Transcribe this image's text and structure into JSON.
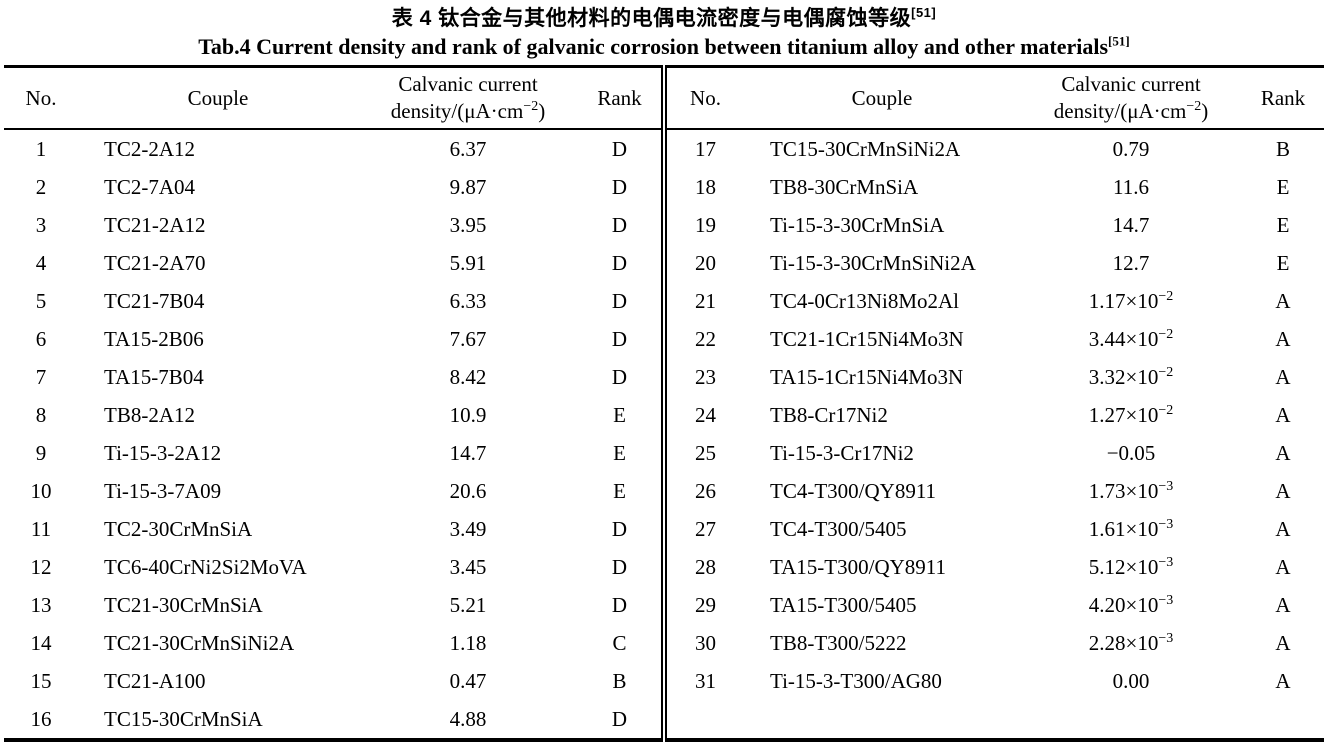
{
  "page": {
    "background_color": "#ffffff",
    "ink_color": "#000000"
  },
  "caption": {
    "zh": "表 4  钛合金与其他材料的电偶电流密度与电偶腐蚀等级",
    "zh_ref": "[51]",
    "en": "Tab.4 Current density and rank of galvanic corrosion between titanium alloy and other materials",
    "en_ref": "[51]"
  },
  "table": {
    "headers": {
      "no": "No.",
      "couple": "Couple",
      "density_line1": "Calvanic current",
      "density_line2_pre": "density/(μA·cm",
      "density_line2_sup": "−2",
      "density_line2_post": ")",
      "rank": "Rank"
    },
    "left_rows": [
      {
        "no": "1",
        "couple": "TC2-2A12",
        "density": "6.37",
        "density_sup": "",
        "rank": "D"
      },
      {
        "no": "2",
        "couple": "TC2-7A04",
        "density": "9.87",
        "density_sup": "",
        "rank": "D"
      },
      {
        "no": "3",
        "couple": "TC21-2A12",
        "density": "3.95",
        "density_sup": "",
        "rank": "D"
      },
      {
        "no": "4",
        "couple": "TC21-2A70",
        "density": "5.91",
        "density_sup": "",
        "rank": "D"
      },
      {
        "no": "5",
        "couple": "TC21-7B04",
        "density": "6.33",
        "density_sup": "",
        "rank": "D"
      },
      {
        "no": "6",
        "couple": "TA15-2B06",
        "density": "7.67",
        "density_sup": "",
        "rank": "D"
      },
      {
        "no": "7",
        "couple": "TA15-7B04",
        "density": "8.42",
        "density_sup": "",
        "rank": "D"
      },
      {
        "no": "8",
        "couple": "TB8-2A12",
        "density": "10.9",
        "density_sup": "",
        "rank": "E"
      },
      {
        "no": "9",
        "couple": "Ti-15-3-2A12",
        "density": "14.7",
        "density_sup": "",
        "rank": "E"
      },
      {
        "no": "10",
        "couple": "Ti-15-3-7A09",
        "density": "20.6",
        "density_sup": "",
        "rank": "E"
      },
      {
        "no": "11",
        "couple": "TC2-30CrMnSiA",
        "density": "3.49",
        "density_sup": "",
        "rank": "D"
      },
      {
        "no": "12",
        "couple": "TC6-40CrNi2Si2MoVA",
        "density": "3.45",
        "density_sup": "",
        "rank": "D"
      },
      {
        "no": "13",
        "couple": "TC21-30CrMnSiA",
        "density": "5.21",
        "density_sup": "",
        "rank": "D"
      },
      {
        "no": "14",
        "couple": "TC21-30CrMnSiNi2A",
        "density": "1.18",
        "density_sup": "",
        "rank": "C"
      },
      {
        "no": "15",
        "couple": "TC21-A100",
        "density": "0.47",
        "density_sup": "",
        "rank": "B"
      },
      {
        "no": "16",
        "couple": "TC15-30CrMnSiA",
        "density": "4.88",
        "density_sup": "",
        "rank": "D"
      }
    ],
    "right_rows": [
      {
        "no": "17",
        "couple": "TC15-30CrMnSiNi2A",
        "density": "0.79",
        "density_sup": "",
        "rank": "B"
      },
      {
        "no": "18",
        "couple": "TB8-30CrMnSiA",
        "density": "11.6",
        "density_sup": "",
        "rank": "E"
      },
      {
        "no": "19",
        "couple": "Ti-15-3-30CrMnSiA",
        "density": "14.7",
        "density_sup": "",
        "rank": "E"
      },
      {
        "no": "20",
        "couple": "Ti-15-3-30CrMnSiNi2A",
        "density": "12.7",
        "density_sup": "",
        "rank": "E"
      },
      {
        "no": "21",
        "couple": "TC4-0Cr13Ni8Mo2Al",
        "density": "1.17×10",
        "density_sup": "−2",
        "rank": "A"
      },
      {
        "no": "22",
        "couple": "TC21-1Cr15Ni4Mo3N",
        "density": "3.44×10",
        "density_sup": "−2",
        "rank": "A"
      },
      {
        "no": "23",
        "couple": "TA15-1Cr15Ni4Mo3N",
        "density": "3.32×10",
        "density_sup": "−2",
        "rank": "A"
      },
      {
        "no": "24",
        "couple": "TB8-Cr17Ni2",
        "density": "1.27×10",
        "density_sup": "−2",
        "rank": "A"
      },
      {
        "no": "25",
        "couple": "Ti-15-3-Cr17Ni2",
        "density": "−0.05",
        "density_sup": "",
        "rank": "A"
      },
      {
        "no": "26",
        "couple": "TC4-T300/QY8911",
        "density": "1.73×10",
        "density_sup": "−3",
        "rank": "A"
      },
      {
        "no": "27",
        "couple": "TC4-T300/5405",
        "density": "1.61×10",
        "density_sup": "−3",
        "rank": "A"
      },
      {
        "no": "28",
        "couple": "TA15-T300/QY8911",
        "density": "5.12×10",
        "density_sup": "−3",
        "rank": "A"
      },
      {
        "no": "29",
        "couple": "TA15-T300/5405",
        "density": "4.20×10",
        "density_sup": "−3",
        "rank": "A"
      },
      {
        "no": "30",
        "couple": "TB8-T300/5222",
        "density": "2.28×10",
        "density_sup": "−3",
        "rank": "A"
      },
      {
        "no": "31",
        "couple": "Ti-15-3-T300/AG80",
        "density": "0.00",
        "density_sup": "",
        "rank": "A"
      }
    ]
  }
}
